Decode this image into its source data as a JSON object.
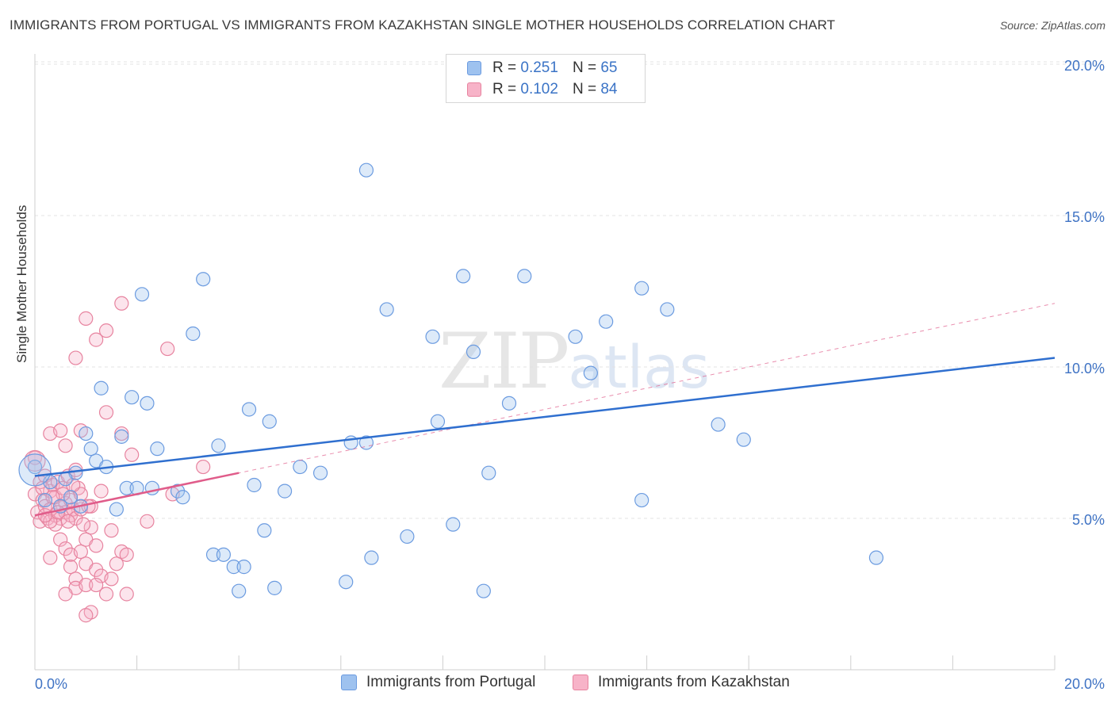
{
  "title": "IMMIGRANTS FROM PORTUGAL VS IMMIGRANTS FROM KAZAKHSTAN SINGLE MOTHER HOUSEHOLDS CORRELATION CHART",
  "source": "Source: ZipAtlas.com",
  "watermark": {
    "zip": "ZIP",
    "atlas": "atlas"
  },
  "legend_top": [
    {
      "r_label": "R =",
      "r_value": "0.251",
      "n_label": "N =",
      "n_value": "65"
    },
    {
      "r_label": "R =",
      "r_value": "0.102",
      "n_label": "N =",
      "n_value": "84"
    }
  ],
  "chart_data": {
    "type": "scatter",
    "title": "IMMIGRANTS FROM PORTUGAL VS IMMIGRANTS FROM KAZAKHSTAN SINGLE MOTHER HOUSEHOLDS CORRELATION CHART",
    "xlabel": "",
    "ylabel": "Single Mother Households",
    "xlim": [
      0,
      20
    ],
    "ylim": [
      0,
      20.5
    ],
    "x_tick_labels": [
      "0.0%",
      "20.0%"
    ],
    "y_ticks": [
      5,
      10,
      15,
      20
    ],
    "y_tick_labels": [
      "5.0%",
      "10.0%",
      "15.0%",
      "20.0%"
    ],
    "grid": "horizontal dashed",
    "legend_position": "top-center and bottom",
    "series": [
      {
        "name": "Immigrants from Portugal",
        "color": "#9ec2ef",
        "stroke": "#6b9be0",
        "trend_color": "#2f6fcf",
        "R": 0.251,
        "N": 65,
        "trend": {
          "x": [
            0,
            20
          ],
          "y": [
            6.4,
            10.3
          ]
        },
        "points": [
          [
            0.0,
            6.7
          ],
          [
            0.3,
            6.2
          ],
          [
            0.5,
            5.4
          ],
          [
            0.7,
            5.7
          ],
          [
            0.8,
            6.5
          ],
          [
            1.0,
            7.8
          ],
          [
            1.1,
            7.3
          ],
          [
            1.2,
            6.9
          ],
          [
            1.4,
            6.7
          ],
          [
            1.6,
            5.3
          ],
          [
            1.7,
            7.7
          ],
          [
            1.3,
            9.3
          ],
          [
            1.9,
            9.0
          ],
          [
            2.1,
            12.4
          ],
          [
            2.2,
            8.8
          ],
          [
            1.8,
            6.0
          ],
          [
            2.4,
            7.3
          ],
          [
            2.3,
            6.0
          ],
          [
            2.8,
            5.9
          ],
          [
            2.9,
            5.7
          ],
          [
            3.1,
            11.1
          ],
          [
            3.3,
            12.9
          ],
          [
            3.5,
            3.8
          ],
          [
            3.7,
            3.8
          ],
          [
            3.6,
            7.4
          ],
          [
            3.9,
            3.4
          ],
          [
            4.1,
            3.4
          ],
          [
            4.0,
            2.6
          ],
          [
            4.2,
            8.6
          ],
          [
            4.3,
            6.1
          ],
          [
            4.5,
            4.6
          ],
          [
            4.6,
            8.2
          ],
          [
            4.7,
            2.7
          ],
          [
            4.9,
            5.9
          ],
          [
            5.2,
            6.7
          ],
          [
            5.6,
            6.5
          ],
          [
            6.1,
            2.9
          ],
          [
            6.2,
            7.5
          ],
          [
            6.5,
            7.5
          ],
          [
            6.5,
            16.5
          ],
          [
            6.6,
            3.7
          ],
          [
            6.9,
            11.9
          ],
          [
            7.3,
            4.4
          ],
          [
            7.8,
            11.0
          ],
          [
            7.9,
            8.2
          ],
          [
            8.2,
            4.8
          ],
          [
            8.4,
            13.0
          ],
          [
            8.6,
            10.5
          ],
          [
            8.9,
            6.5
          ],
          [
            8.8,
            2.6
          ],
          [
            9.3,
            8.8
          ],
          [
            9.6,
            13.0
          ],
          [
            10.6,
            11.0
          ],
          [
            10.9,
            9.8
          ],
          [
            11.2,
            11.5
          ],
          [
            11.9,
            5.6
          ],
          [
            11.9,
            12.6
          ],
          [
            12.4,
            11.9
          ],
          [
            13.4,
            8.1
          ],
          [
            13.9,
            7.6
          ],
          [
            16.5,
            3.7
          ],
          [
            0.2,
            5.6
          ],
          [
            0.6,
            6.3
          ],
          [
            2.0,
            6.0
          ],
          [
            0.9,
            5.4
          ]
        ]
      },
      {
        "name": "Immigrants from Kazakhstan",
        "color": "#f7b3c8",
        "stroke": "#e7839f",
        "trend_color": "#e05c8a",
        "R": 0.102,
        "N": 84,
        "trend": {
          "x": [
            0,
            4.0
          ],
          "y": [
            5.1,
            6.5
          ]
        },
        "trend_extended": {
          "x": [
            0,
            20
          ],
          "y": [
            5.1,
            12.1
          ]
        },
        "points": [
          [
            0.0,
            7.0
          ],
          [
            0.0,
            5.8
          ],
          [
            0.05,
            5.2
          ],
          [
            0.1,
            6.2
          ],
          [
            0.1,
            4.9
          ],
          [
            0.15,
            5.6
          ],
          [
            0.2,
            5.4
          ],
          [
            0.2,
            6.4
          ],
          [
            0.25,
            5.0
          ],
          [
            0.3,
            5.9
          ],
          [
            0.3,
            5.3
          ],
          [
            0.35,
            6.1
          ],
          [
            0.4,
            5.1
          ],
          [
            0.4,
            5.7
          ],
          [
            0.45,
            6.2
          ],
          [
            0.5,
            5.4
          ],
          [
            0.5,
            5.0
          ],
          [
            0.55,
            6.0
          ],
          [
            0.6,
            5.5
          ],
          [
            0.6,
            5.2
          ],
          [
            0.65,
            6.4
          ],
          [
            0.7,
            5.1
          ],
          [
            0.7,
            5.6
          ],
          [
            0.75,
            5.3
          ],
          [
            0.8,
            6.6
          ],
          [
            0.8,
            5.0
          ],
          [
            0.85,
            6.0
          ],
          [
            0.9,
            5.8
          ],
          [
            0.3,
            7.8
          ],
          [
            0.5,
            7.9
          ],
          [
            0.6,
            7.4
          ],
          [
            0.9,
            7.9
          ],
          [
            0.5,
            4.3
          ],
          [
            0.6,
            4.0
          ],
          [
            0.7,
            3.8
          ],
          [
            0.7,
            3.4
          ],
          [
            0.8,
            3.0
          ],
          [
            0.8,
            2.7
          ],
          [
            0.9,
            3.9
          ],
          [
            1.0,
            4.3
          ],
          [
            1.0,
            3.5
          ],
          [
            1.0,
            2.8
          ],
          [
            1.1,
            4.7
          ],
          [
            1.2,
            4.1
          ],
          [
            1.2,
            3.3
          ],
          [
            1.3,
            5.9
          ],
          [
            1.3,
            3.1
          ],
          [
            1.4,
            2.5
          ],
          [
            1.5,
            4.6
          ],
          [
            1.5,
            3.0
          ],
          [
            1.6,
            3.5
          ],
          [
            1.7,
            3.9
          ],
          [
            1.8,
            3.8
          ],
          [
            1.8,
            2.5
          ],
          [
            1.2,
            2.8
          ],
          [
            1.1,
            1.9
          ],
          [
            1.0,
            1.8
          ],
          [
            0.6,
            2.5
          ],
          [
            0.3,
            3.7
          ],
          [
            0.8,
            10.3
          ],
          [
            1.0,
            11.6
          ],
          [
            1.2,
            10.9
          ],
          [
            1.4,
            11.2
          ],
          [
            1.7,
            12.1
          ],
          [
            1.4,
            8.5
          ],
          [
            1.7,
            7.8
          ],
          [
            1.9,
            7.1
          ],
          [
            2.2,
            4.9
          ],
          [
            2.6,
            10.6
          ],
          [
            2.7,
            5.8
          ],
          [
            3.3,
            6.7
          ],
          [
            0.4,
            4.8
          ],
          [
            0.9,
            5.3
          ],
          [
            1.1,
            5.4
          ],
          [
            0.3,
            4.9
          ],
          [
            0.2,
            5.1
          ],
          [
            0.45,
            5.2
          ],
          [
            0.55,
            5.8
          ],
          [
            0.75,
            6.1
          ],
          [
            0.95,
            4.8
          ],
          [
            1.05,
            5.4
          ],
          [
            0.15,
            6.0
          ],
          [
            0.35,
            5.7
          ],
          [
            0.65,
            4.9
          ]
        ]
      }
    ]
  }
}
